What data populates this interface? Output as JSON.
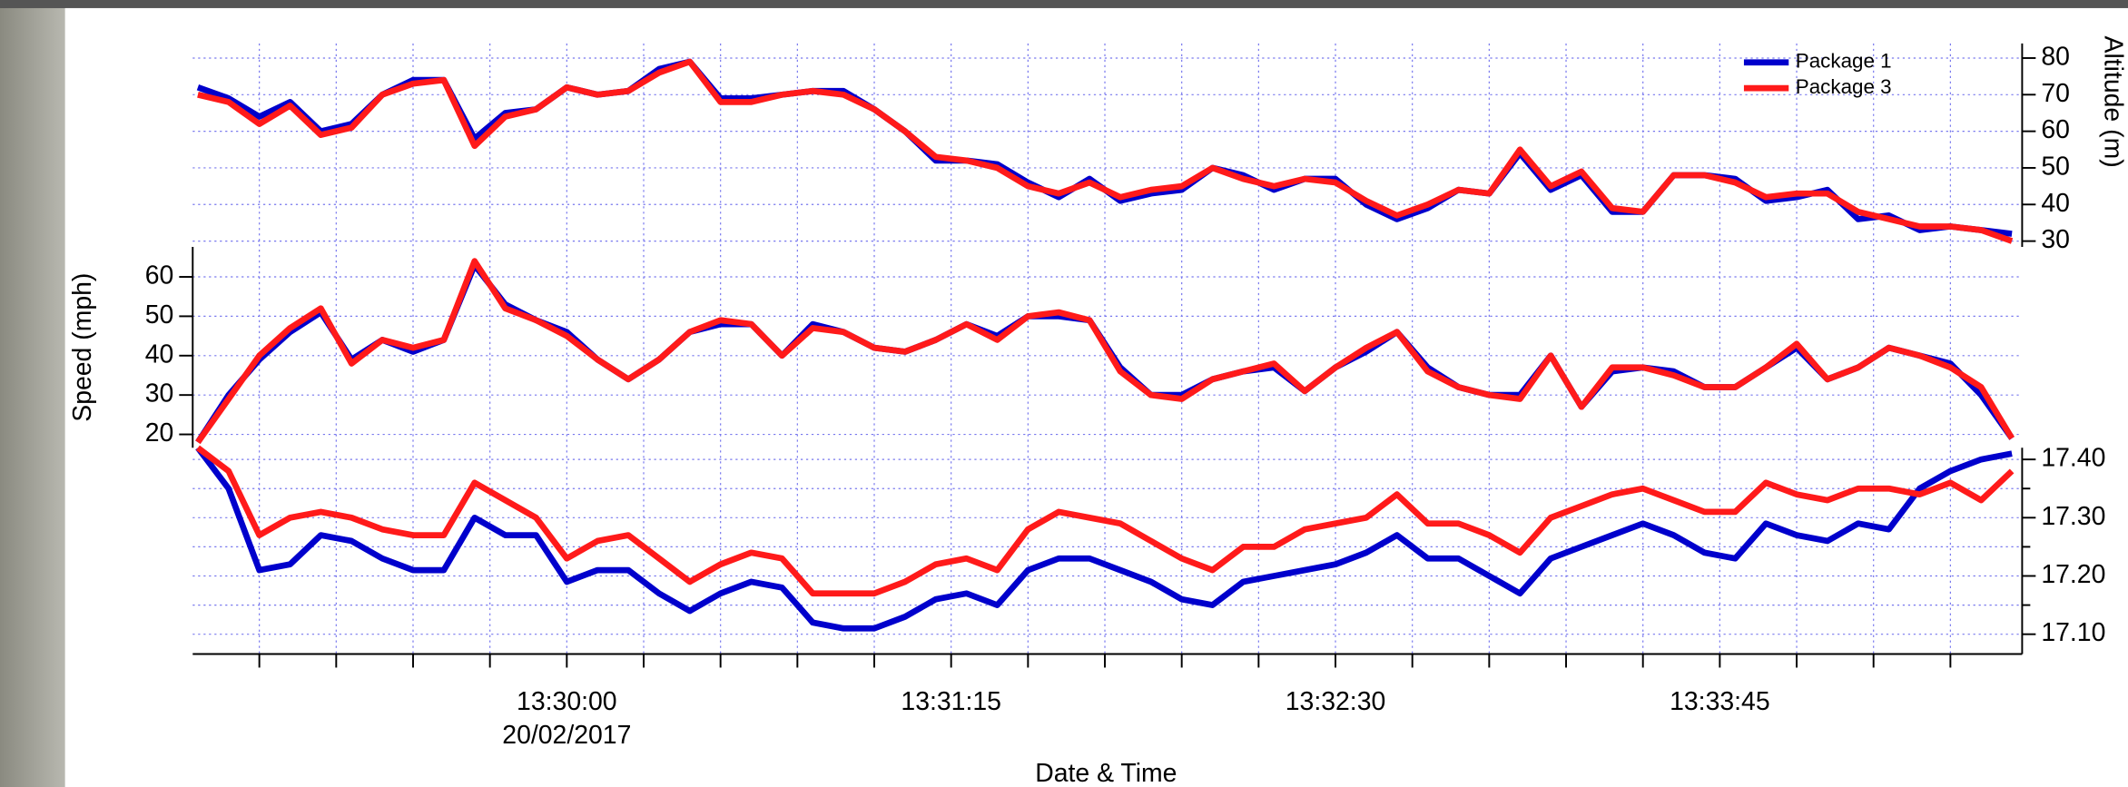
{
  "chart_data": {
    "type": "line",
    "xlabel": "Date & Time",
    "date_label": "20/02/2017",
    "x": [
      "13:28:48",
      "13:28:54",
      "13:29:00",
      "13:29:06",
      "13:29:12",
      "13:29:18",
      "13:29:24",
      "13:29:30",
      "13:29:36",
      "13:29:42",
      "13:29:48",
      "13:29:54",
      "13:30:00",
      "13:30:06",
      "13:30:12",
      "13:30:18",
      "13:30:24",
      "13:30:30",
      "13:30:36",
      "13:30:42",
      "13:30:48",
      "13:30:54",
      "13:31:00",
      "13:31:06",
      "13:31:12",
      "13:31:18",
      "13:31:24",
      "13:31:30",
      "13:31:36",
      "13:31:42",
      "13:31:48",
      "13:31:54",
      "13:32:00",
      "13:32:06",
      "13:32:12",
      "13:32:18",
      "13:32:24",
      "13:32:30",
      "13:32:36",
      "13:32:42",
      "13:32:48",
      "13:32:54",
      "13:33:00",
      "13:33:06",
      "13:33:12",
      "13:33:18",
      "13:33:24",
      "13:33:30",
      "13:33:36",
      "13:33:42",
      "13:33:48",
      "13:33:54",
      "13:34:00",
      "13:34:06",
      "13:34:12",
      "13:34:18",
      "13:34:24",
      "13:34:30",
      "13:34:36",
      "13:34:42"
    ],
    "xlim": [
      "13:28:47",
      "13:34:44"
    ],
    "xticks": [
      "13:30:00",
      "13:31:15",
      "13:32:30",
      "13:33:45"
    ],
    "x_minor_ticks": [
      "13:29:00",
      "13:29:15",
      "13:29:30",
      "13:29:45",
      "13:30:15",
      "13:30:30",
      "13:30:45",
      "13:31:00",
      "13:31:30",
      "13:31:45",
      "13:32:00",
      "13:32:15",
      "13:32:45",
      "13:33:00",
      "13:33:15",
      "13:33:30",
      "13:34:00",
      "13:34:15",
      "13:34:30"
    ],
    "grid": true,
    "legend": "top-right",
    "panels": [
      {
        "ylabel": "Altitude (m)",
        "axis_side": "right",
        "ylim": [
          28.4,
          84
        ],
        "yticks": [
          30,
          40,
          50,
          60,
          70,
          80
        ],
        "series": [
          {
            "name": "Package 1",
            "color": "#0000cc",
            "values": [
              72,
              69,
              64,
              68,
              60,
              62,
              70,
              74,
              74,
              58,
              65,
              66,
              72,
              70,
              71,
              77,
              79,
              69,
              69,
              70,
              71,
              71,
              66,
              60,
              52,
              52,
              51,
              46,
              42,
              47,
              41,
              43,
              44,
              50,
              48,
              44,
              47,
              47,
              40,
              36,
              39,
              44,
              43,
              54,
              44,
              48,
              38,
              38,
              48,
              48,
              47,
              41,
              42,
              44,
              36,
              37,
              33,
              34,
              33,
              32
            ]
          },
          {
            "name": "Package 3",
            "color": "#ff1a1a",
            "values": [
              70,
              68,
              62,
              67,
              59,
              61,
              70,
              73,
              74,
              56,
              64,
              66,
              72,
              70,
              71,
              76,
              79,
              68,
              68,
              70,
              71,
              70,
              66,
              60,
              53,
              52,
              50,
              45,
              43,
              46,
              42,
              44,
              45,
              50,
              47,
              45,
              47,
              46,
              41,
              37,
              40,
              44,
              43,
              55,
              45,
              49,
              39,
              38,
              48,
              48,
              46,
              42,
              43,
              43,
              38,
              36,
              34,
              34,
              33,
              30
            ]
          }
        ]
      },
      {
        "ylabel": "Speed (mph)",
        "axis_side": "left",
        "ylim": [
          16.6,
          67.6
        ],
        "yticks": [
          20,
          30,
          40,
          50,
          60
        ],
        "series": [
          {
            "color": "#0000cc",
            "values": [
              18,
              30,
              39,
              46,
              51,
              39,
              44,
              41,
              44,
              63,
              53,
              49,
              46,
              39,
              34,
              39,
              46,
              48,
              48,
              40,
              48,
              46,
              42,
              41,
              44,
              48,
              45,
              50,
              50,
              49,
              37,
              30,
              30,
              34,
              36,
              37,
              31,
              37,
              41,
              46,
              37,
              32,
              30,
              30,
              40,
              27,
              36,
              37,
              36,
              32,
              32,
              37,
              42,
              34,
              37,
              42,
              40,
              38,
              30,
              19
            ]
          },
          {
            "color": "#ff1a1a",
            "values": [
              18,
              29,
              40,
              47,
              52,
              38,
              44,
              42,
              44,
              64,
              52,
              49,
              45,
              39,
              34,
              39,
              46,
              49,
              48,
              40,
              47,
              46,
              42,
              41,
              44,
              48,
              44,
              50,
              51,
              49,
              36,
              30,
              29,
              34,
              36,
              38,
              31,
              37,
              42,
              46,
              36,
              32,
              30,
              29,
              40,
              27,
              37,
              37,
              35,
              32,
              32,
              37,
              43,
              34,
              37,
              42,
              40,
              37,
              32,
              19
            ]
          }
        ]
      },
      {
        "axis_side": "right",
        "ylim": [
          17.066,
          17.42
        ],
        "yticks": [
          {
            "value": 17.1,
            "label": "17.10"
          },
          {
            "value": 17.2,
            "label": "17.20"
          },
          {
            "value": 17.3,
            "label": "17.30"
          },
          {
            "value": 17.4,
            "label": "17.40"
          }
        ],
        "y_minor_ticks": [
          17.15,
          17.25,
          17.35
        ],
        "series": [
          {
            "color": "#0000cc",
            "values": [
              17.42,
              17.35,
              17.21,
              17.22,
              17.27,
              17.26,
              17.23,
              17.21,
              17.21,
              17.3,
              17.27,
              17.27,
              17.19,
              17.21,
              17.21,
              17.17,
              17.14,
              17.17,
              17.19,
              17.18,
              17.12,
              17.11,
              17.11,
              17.13,
              17.16,
              17.17,
              17.15,
              17.21,
              17.23,
              17.23,
              17.21,
              17.19,
              17.16,
              17.15,
              17.19,
              17.2,
              17.21,
              17.22,
              17.24,
              17.27,
              17.23,
              17.23,
              17.2,
              17.17,
              17.23,
              17.25,
              17.27,
              17.29,
              17.27,
              17.24,
              17.23,
              17.29,
              17.27,
              17.26,
              17.29,
              17.28,
              17.35,
              17.38,
              17.4,
              17.41
            ]
          },
          {
            "color": "#ff1a1a",
            "values": [
              17.42,
              17.38,
              17.27,
              17.3,
              17.31,
              17.3,
              17.28,
              17.27,
              17.27,
              17.36,
              17.33,
              17.3,
              17.23,
              17.26,
              17.27,
              17.23,
              17.19,
              17.22,
              17.24,
              17.23,
              17.17,
              17.17,
              17.17,
              17.19,
              17.22,
              17.23,
              17.21,
              17.28,
              17.31,
              17.3,
              17.29,
              17.26,
              17.23,
              17.21,
              17.25,
              17.25,
              17.28,
              17.29,
              17.3,
              17.34,
              17.29,
              17.29,
              17.27,
              17.24,
              17.3,
              17.32,
              17.34,
              17.35,
              17.33,
              17.31,
              17.31,
              17.36,
              17.34,
              17.33,
              17.35,
              17.35,
              17.34,
              17.36,
              17.33,
              17.38
            ]
          }
        ]
      }
    ]
  }
}
